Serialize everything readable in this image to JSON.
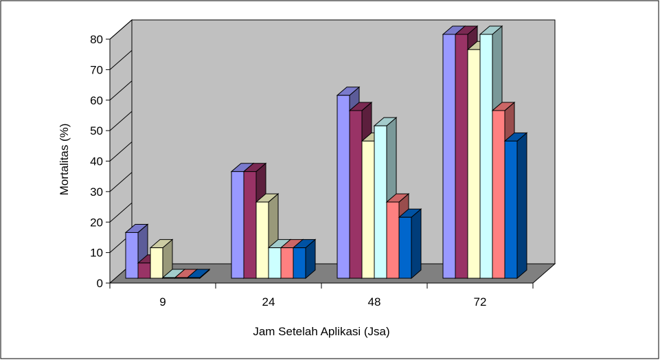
{
  "chart_data": {
    "type": "bar",
    "title": "",
    "xlabel": "Jam Setelah Aplikasi (Jsa)",
    "ylabel": "Mortalitas (%)",
    "categories": [
      "9",
      "24",
      "48",
      "72"
    ],
    "ylim": [
      0,
      80
    ],
    "yticks": [
      "0",
      "10",
      "20",
      "30",
      "40",
      "50",
      "60",
      "70",
      "80"
    ],
    "legend": "none",
    "style": "3d-clustered-column",
    "series": [
      {
        "values": [
          15,
          35,
          60,
          80
        ],
        "color": "#9999ff"
      },
      {
        "values": [
          5,
          35,
          55,
          80
        ],
        "color": "#993366"
      },
      {
        "values": [
          10,
          25,
          45,
          75
        ],
        "color": "#ffffcc"
      },
      {
        "values": [
          0,
          10,
          50,
          80
        ],
        "color": "#ccffff"
      },
      {
        "values": [
          0,
          10,
          25,
          55
        ],
        "color": "#ff8080"
      },
      {
        "values": [
          0,
          10,
          20,
          45
        ],
        "color": "#0066cc"
      }
    ],
    "wall_color": "#c0c0c0",
    "floor_color": "#808080"
  }
}
